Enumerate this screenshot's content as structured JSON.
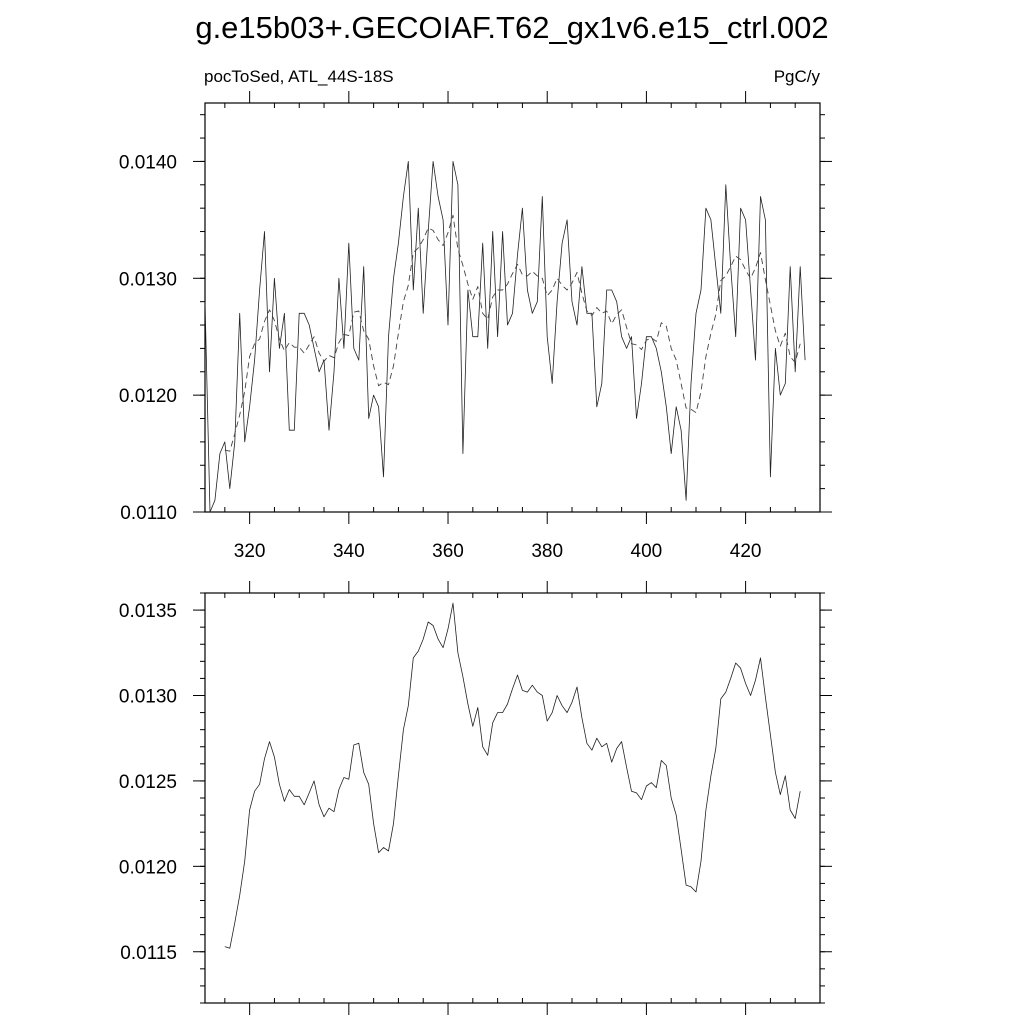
{
  "title": "g.e15b03+.GECOIAF.T62_gx1v6.e15_ctrl.002",
  "chart_data": [
    {
      "type": "line",
      "subtitle_left": "pocToSed, ATL_44S-18S",
      "subtitle_right": "PgC/y",
      "xlim": [
        311,
        435
      ],
      "ylim": [
        0.011,
        0.0145
      ],
      "x_ticks": [
        320,
        340,
        360,
        380,
        400,
        420
      ],
      "x_tick_labels": [
        "320",
        "340",
        "360",
        "380",
        "400",
        "420"
      ],
      "y_ticks": [
        0.011,
        0.012,
        0.013,
        0.014
      ],
      "y_tick_labels": [
        "0.0110",
        "0.0120",
        "0.0130",
        "0.0140"
      ],
      "series": [
        {
          "style": "solid",
          "x_start": 311,
          "x_step": 1,
          "values": [
            0.0128,
            0.011,
            0.0111,
            0.0115,
            0.0116,
            0.0112,
            0.0116,
            0.0127,
            0.0116,
            0.0119,
            0.0123,
            0.0129,
            0.0134,
            0.0122,
            0.013,
            0.0124,
            0.0127,
            0.0117,
            0.0117,
            0.0127,
            0.0127,
            0.0126,
            0.0124,
            0.0122,
            0.0123,
            0.0117,
            0.0122,
            0.013,
            0.0124,
            0.0133,
            0.0124,
            0.0123,
            0.0131,
            0.0118,
            0.012,
            0.0119,
            0.0113,
            0.0125,
            0.013,
            0.0133,
            0.0137,
            0.014,
            0.0129,
            0.0136,
            0.0127,
            0.0134,
            0.014,
            0.0137,
            0.0135,
            0.0126,
            0.014,
            0.0138,
            0.0115,
            0.0129,
            0.0125,
            0.0125,
            0.0133,
            0.0124,
            0.0134,
            0.0125,
            0.0134,
            0.0126,
            0.0127,
            0.0132,
            0.0136,
            0.0129,
            0.0127,
            0.0128,
            0.0137,
            0.0125,
            0.0121,
            0.0128,
            0.0133,
            0.0135,
            0.0128,
            0.0126,
            0.0131,
            0.0127,
            0.0127,
            0.0119,
            0.0121,
            0.0129,
            0.0129,
            0.0128,
            0.0125,
            0.0124,
            0.0125,
            0.0118,
            0.0121,
            0.0125,
            0.0125,
            0.0124,
            0.0122,
            0.0119,
            0.0115,
            0.0119,
            0.0117,
            0.0111,
            0.0121,
            0.0127,
            0.0129,
            0.0136,
            0.0135,
            0.0131,
            0.0127,
            0.0138,
            0.0131,
            0.0125,
            0.0136,
            0.0135,
            0.0129,
            0.0123,
            0.0137,
            0.0135,
            0.0113,
            0.0124,
            0.012,
            0.0121,
            0.0131,
            0.0122,
            0.0131,
            0.0123
          ]
        },
        {
          "style": "dashed",
          "x_start": 315,
          "x_step": 1,
          "values": [
            0.01153,
            0.01152,
            0.01167,
            0.01183,
            0.01203,
            0.01233,
            0.01244,
            0.01248,
            0.01263,
            0.01273,
            0.01264,
            0.01248,
            0.01238,
            0.01245,
            0.01241,
            0.01241,
            0.01236,
            0.01243,
            0.0125,
            0.01236,
            0.01229,
            0.01234,
            0.01232,
            0.01245,
            0.01252,
            0.01251,
            0.01271,
            0.01272,
            0.01255,
            0.01248,
            0.01225,
            0.01208,
            0.01211,
            0.01209,
            0.01225,
            0.01253,
            0.0128,
            0.01294,
            0.01322,
            0.01326,
            0.01333,
            0.01343,
            0.01341,
            0.01333,
            0.01328,
            0.01339,
            0.01354,
            0.01325,
            0.01311,
            0.01295,
            0.01282,
            0.01293,
            0.0127,
            0.01265,
            0.01284,
            0.0129,
            0.0129,
            0.01295,
            0.01304,
            0.01312,
            0.01303,
            0.01302,
            0.01306,
            0.01302,
            0.013,
            0.01285,
            0.0129,
            0.013,
            0.01294,
            0.0129,
            0.01296,
            0.01305,
            0.01287,
            0.01272,
            0.01268,
            0.01275,
            0.0127,
            0.01272,
            0.01261,
            0.01269,
            0.01273,
            0.01258,
            0.01244,
            0.01243,
            0.01239,
            0.01247,
            0.01249,
            0.01246,
            0.01262,
            0.01259,
            0.0124,
            0.0123,
            0.0121,
            0.01189,
            0.01188,
            0.01185,
            0.01203,
            0.01233,
            0.01253,
            0.01269,
            0.01298,
            0.01302,
            0.0131,
            0.01319,
            0.01316,
            0.01307,
            0.013,
            0.01309,
            0.01322,
            0.01299,
            0.01277,
            0.01255,
            0.01242,
            0.01253,
            0.01233,
            0.01228,
            0.01244
          ]
        }
      ]
    },
    {
      "type": "line",
      "xlim": [
        311,
        435
      ],
      "ylim": [
        0.0112,
        0.0136
      ],
      "x_ticks": [
        320,
        340,
        360,
        380,
        400,
        420
      ],
      "x_tick_labels": [],
      "y_ticks": [
        0.0115,
        0.012,
        0.0125,
        0.013,
        0.0135
      ],
      "y_tick_labels": [
        "0.0115",
        "0.0120",
        "0.0125",
        "0.0130",
        "0.0135"
      ],
      "series": [
        {
          "style": "solid",
          "x_start": 315,
          "x_step": 1,
          "values": [
            0.01153,
            0.01152,
            0.01167,
            0.01183,
            0.01203,
            0.01233,
            0.01244,
            0.01248,
            0.01263,
            0.01273,
            0.01264,
            0.01248,
            0.01238,
            0.01245,
            0.01241,
            0.01241,
            0.01236,
            0.01243,
            0.0125,
            0.01236,
            0.01229,
            0.01234,
            0.01232,
            0.01245,
            0.01252,
            0.01251,
            0.01271,
            0.01272,
            0.01255,
            0.01248,
            0.01225,
            0.01208,
            0.01211,
            0.01209,
            0.01225,
            0.01253,
            0.0128,
            0.01294,
            0.01322,
            0.01326,
            0.01333,
            0.01343,
            0.01341,
            0.01333,
            0.01328,
            0.01339,
            0.01354,
            0.01325,
            0.01311,
            0.01295,
            0.01282,
            0.01293,
            0.0127,
            0.01265,
            0.01284,
            0.0129,
            0.0129,
            0.01295,
            0.01304,
            0.01312,
            0.01303,
            0.01302,
            0.01306,
            0.01302,
            0.013,
            0.01285,
            0.0129,
            0.013,
            0.01294,
            0.0129,
            0.01296,
            0.01305,
            0.01287,
            0.01272,
            0.01268,
            0.01275,
            0.0127,
            0.01272,
            0.01261,
            0.01269,
            0.01273,
            0.01258,
            0.01244,
            0.01243,
            0.01239,
            0.01247,
            0.01249,
            0.01246,
            0.01262,
            0.01259,
            0.0124,
            0.0123,
            0.0121,
            0.01189,
            0.01188,
            0.01185,
            0.01203,
            0.01233,
            0.01253,
            0.01269,
            0.01298,
            0.01302,
            0.0131,
            0.01319,
            0.01316,
            0.01307,
            0.013,
            0.01309,
            0.01322,
            0.01299,
            0.01277,
            0.01255,
            0.01242,
            0.01253,
            0.01233,
            0.01228,
            0.01244
          ]
        }
      ]
    }
  ]
}
